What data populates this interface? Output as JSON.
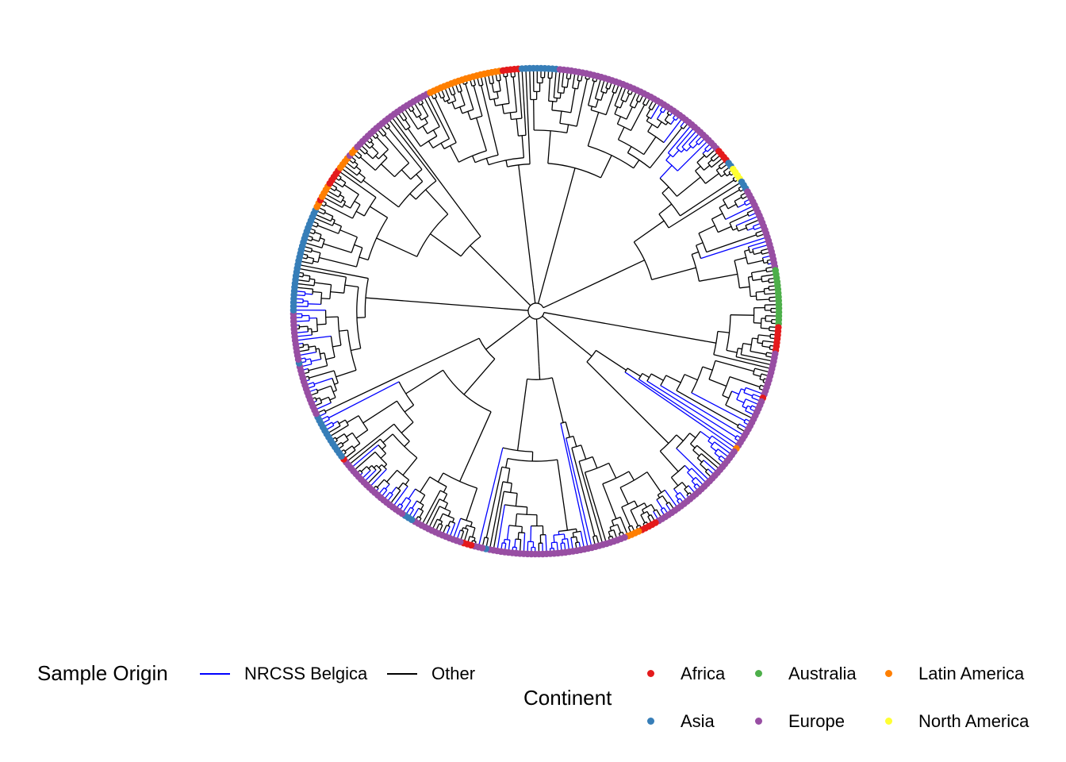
{
  "chart_data": {
    "type": "circular-phylogenetic-tree",
    "branch_colors": {
      "NRCSS Belgica": "#0000ff",
      "Other": "#000000"
    },
    "tip_colors": {
      "Africa": "#e41a1c",
      "Asia": "#377eb8",
      "Australia": "#4daf4a",
      "Europe": "#984ea3",
      "Latin America": "#ff7f00",
      "North America": "#ffff33"
    }
  },
  "legend": {
    "sample_origin": {
      "title": "Sample Origin",
      "items": [
        {
          "label": "NRCSS Belgica",
          "color": "#0000ff"
        },
        {
          "label": "Other",
          "color": "#000000"
        }
      ]
    },
    "continent": {
      "title": "Continent",
      "items": [
        {
          "label": "Africa",
          "color": "#e41a1c"
        },
        {
          "label": "Australia",
          "color": "#4daf4a"
        },
        {
          "label": "Latin America",
          "color": "#ff7f00"
        },
        {
          "label": "Asia",
          "color": "#377eb8"
        },
        {
          "label": "Europe",
          "color": "#984ea3"
        },
        {
          "label": "North America",
          "color": "#ffff33"
        }
      ]
    }
  }
}
